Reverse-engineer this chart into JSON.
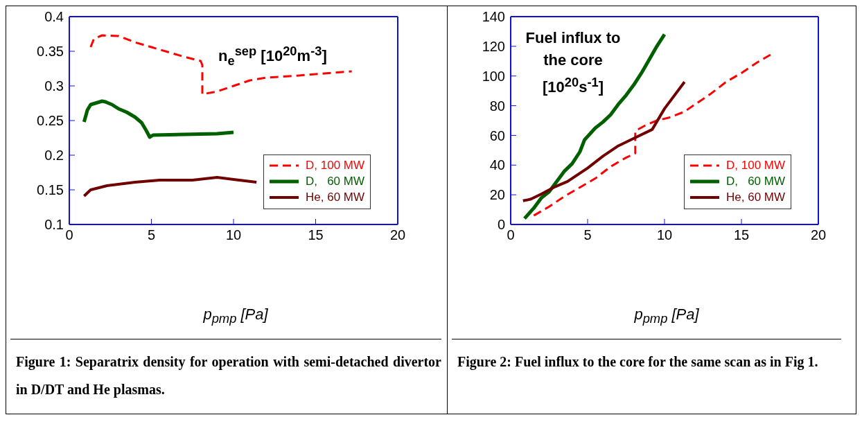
{
  "chart_data": [
    {
      "type": "line",
      "xlabel": "p$_{pmp}$ [Pa]",
      "xlim": [
        0,
        20
      ],
      "xticks": [
        0,
        5,
        10,
        15,
        20
      ],
      "ylim": [
        0.1,
        0.4
      ],
      "yticks": [
        0.1,
        0.15,
        0.2,
        0.25,
        0.3,
        0.35,
        0.4
      ],
      "legend": "right",
      "marker": "none",
      "annotations": [
        "n$_{e}$$^{sep}$ [10$^{20}$m$^{-3}$]",
        "Figure 1: Separatrix density for operation with semi-detached divertor in D/DT and He plasmas."
      ],
      "series": [
        {
          "name": "D, 100 MW",
          "color": "#ff0000",
          "line_style": "dashed",
          "x": [
            1.3,
            1.5,
            2,
            3,
            4,
            5,
            6,
            7,
            8,
            8.1,
            8.1,
            9,
            10,
            11,
            12,
            14,
            15,
            17.2
          ],
          "values": [
            0.356,
            0.368,
            0.373,
            0.372,
            0.363,
            0.356,
            0.349,
            0.342,
            0.336,
            0.33,
            0.288,
            0.292,
            0.3,
            0.308,
            0.312,
            0.315,
            0.317,
            0.321
          ]
        },
        {
          "name": "D,   60 MW",
          "color": "#006000",
          "line_style": "solid",
          "x": [
            0.9,
            1.1,
            1.3,
            2,
            2.2,
            2.6,
            3,
            3.5,
            4,
            4.4,
            4.7,
            4.9,
            5.1,
            7,
            9,
            10
          ],
          "values": [
            0.248,
            0.265,
            0.273,
            0.278,
            0.277,
            0.273,
            0.267,
            0.262,
            0.255,
            0.247,
            0.235,
            0.226,
            0.229,
            0.23,
            0.231,
            0.233
          ]
        },
        {
          "name": "He, 60 MW",
          "color": "#700000",
          "line_style": "solid",
          "x": [
            0.9,
            1.3,
            2.3,
            4,
            5.5,
            7.5,
            9,
            10,
            11.4
          ],
          "values": [
            0.141,
            0.15,
            0.156,
            0.161,
            0.164,
            0.164,
            0.168,
            0.165,
            0.161
          ]
        }
      ]
    },
    {
      "type": "line",
      "xlabel": "p$_{pmp}$ [Pa]",
      "xlim": [
        0,
        20
      ],
      "xticks": [
        0,
        5,
        10,
        15,
        20
      ],
      "ylim": [
        0,
        140
      ],
      "yticks": [
        0,
        20,
        40,
        60,
        80,
        100,
        120,
        140
      ],
      "legend": "right",
      "marker": "none",
      "annotations": [
        "Fuel influx to the core [10$^{20}$s$^{-1}$]",
        "Figure 2: Fuel influx to the core for the same scan as in Fig 1."
      ],
      "series": [
        {
          "name": "D, 100 MW",
          "color": "#ff0000",
          "line_style": "dashed",
          "x": [
            1.5,
            2.5,
            3.5,
            4.5,
            5.5,
            6.5,
            7.5,
            8.1,
            8.1,
            8.8,
            9.5,
            10.3,
            11.3,
            12,
            13,
            14,
            15,
            16,
            17
          ],
          "values": [
            6,
            12,
            19,
            25,
            31,
            39,
            45,
            48,
            63,
            67,
            70,
            72,
            76,
            81,
            88,
            96,
            102,
            109,
            115
          ]
        },
        {
          "name": "D,   60 MW",
          "color": "#006000",
          "line_style": "solid",
          "x": [
            0.9,
            1.5,
            2,
            2.5,
            3,
            3.5,
            4,
            4.5,
            4.8,
            5.5,
            6,
            6.5,
            7,
            7.5,
            8,
            8.5,
            9,
            9.5,
            10
          ],
          "values": [
            4,
            11,
            18,
            22,
            29,
            36,
            41,
            49,
            57,
            65,
            69,
            74,
            81,
            87,
            94,
            102,
            111,
            120,
            128
          ]
        },
        {
          "name": "He, 60 MW",
          "color": "#700000",
          "line_style": "solid",
          "x": [
            0.8,
            1.3,
            2,
            2.8,
            3.7,
            5,
            6,
            7,
            8,
            9.2,
            10,
            11.3
          ],
          "values": [
            16,
            17,
            20.5,
            25,
            29,
            38,
            46,
            53,
            58,
            64,
            78,
            96
          ]
        }
      ]
    }
  ]
}
